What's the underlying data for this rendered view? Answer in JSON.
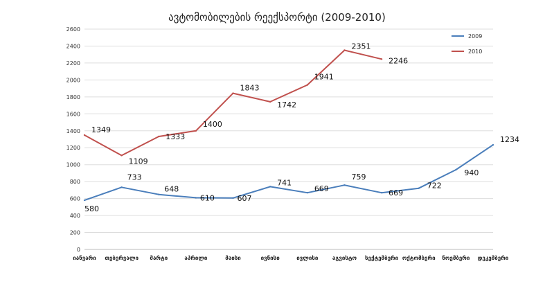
{
  "chart_data": {
    "type": "line",
    "title": "ავტომობილების რეექსპორტი (2009-2010)",
    "xlabel": "",
    "ylabel": "",
    "categories": [
      "იანვარი",
      "თებერვალი",
      "მარტი",
      "აპრილი",
      "მაისი",
      "ივნისი",
      "ივლისი",
      "აგვისტო",
      "სექტემბერი",
      "ოქტომბერი",
      "ნოემბერი",
      "დეკემბერი"
    ],
    "ylim": [
      0,
      2600
    ],
    "yticks": [
      0,
      200,
      400,
      600,
      800,
      1000,
      1200,
      1400,
      1600,
      1800,
      2000,
      2200,
      2400,
      2600
    ],
    "grid": true,
    "legend": "top-right",
    "series": [
      {
        "name": "2009",
        "color": "#4a7ebb",
        "values": [
          580,
          733,
          648,
          610,
          607,
          741,
          669,
          759,
          669,
          722,
          940,
          1234
        ]
      },
      {
        "name": "2010",
        "color": "#c0504d",
        "values": [
          1349,
          1109,
          1333,
          1400,
          1843,
          1742,
          1941,
          2351,
          2246,
          null,
          null,
          null
        ]
      }
    ]
  }
}
